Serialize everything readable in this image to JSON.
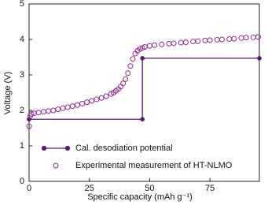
{
  "chart_data": {
    "type": "line",
    "xlabel": "Specific capacity (mAh g⁻¹)",
    "ylabel": "Voltage (V)",
    "xlim": [
      0,
      95.5
    ],
    "xticks": [
      0,
      25,
      50,
      75
    ],
    "ylim": [
      0,
      5
    ],
    "yticks": [
      0,
      1,
      2,
      3,
      4,
      5
    ],
    "legend": "lower-center",
    "series": [
      {
        "name": "Cal. desodiation potential",
        "color": "#5a1a6e",
        "marker": "filled",
        "line": true,
        "x": [
          0,
          47,
          47,
          95.5
        ],
        "values": [
          1.75,
          1.75,
          3.47,
          3.47
        ]
      },
      {
        "name": "Experimental measurement of HT-NLMO",
        "color": "#8e2a8e",
        "marker": "open",
        "line": false,
        "x": [
          0,
          0.5,
          1,
          2,
          4,
          6,
          8,
          10,
          12,
          14,
          16,
          18,
          20,
          22,
          24,
          26,
          28,
          30,
          32,
          34,
          35,
          36,
          37,
          38,
          39,
          40,
          41,
          42,
          43,
          44,
          45,
          46,
          47,
          48,
          50,
          52,
          55,
          58,
          60,
          63,
          65,
          68,
          70,
          73,
          75,
          78,
          80,
          83,
          85,
          88,
          90,
          93,
          95
        ],
        "values": [
          1.55,
          1.85,
          1.9,
          1.92,
          1.94,
          1.96,
          1.98,
          2.0,
          2.03,
          2.06,
          2.09,
          2.12,
          2.15,
          2.19,
          2.23,
          2.27,
          2.31,
          2.35,
          2.4,
          2.46,
          2.5,
          2.55,
          2.6,
          2.67,
          2.76,
          2.88,
          3.05,
          3.25,
          3.45,
          3.6,
          3.68,
          3.73,
          3.76,
          3.79,
          3.82,
          3.84,
          3.86,
          3.88,
          3.89,
          3.91,
          3.92,
          3.94,
          3.95,
          3.97,
          3.98,
          3.99,
          4.0,
          4.01,
          4.02,
          4.04,
          4.05,
          4.06,
          4.07
        ]
      }
    ]
  }
}
